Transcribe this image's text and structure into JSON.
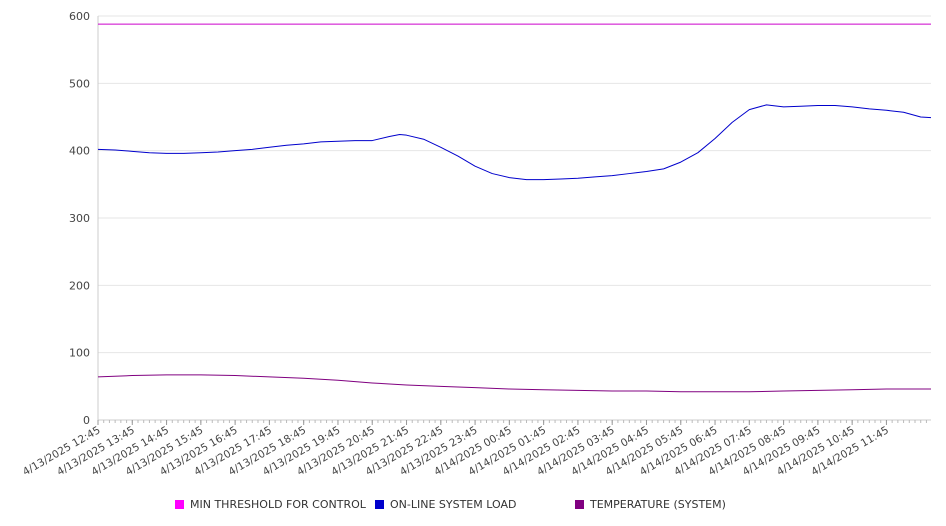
{
  "chart_data": {
    "type": "line",
    "title": "",
    "xlabel": "",
    "ylabel": "",
    "ylim": [
      0,
      600
    ],
    "yticks": [
      0,
      100,
      200,
      300,
      400,
      500,
      600
    ],
    "grid": true,
    "legend_position": "bottom",
    "categories": [
      "4/13/2025 12:45",
      "4/13/2025 13:45",
      "4/13/2025 14:45",
      "4/13/2025 15:45",
      "4/13/2025 16:45",
      "4/13/2025 17:45",
      "4/13/2025 18:45",
      "4/13/2025 19:45",
      "4/13/2025 20:45",
      "4/13/2025 21:45",
      "4/13/2025 22:45",
      "4/13/2025 23:45",
      "4/14/2025 00:45",
      "4/14/2025 01:45",
      "4/14/2025 02:45",
      "4/14/2025 03:45",
      "4/14/2025 04:45",
      "4/14/2025 05:45",
      "4/14/2025 06:45",
      "4/14/2025 07:45",
      "4/14/2025 08:45",
      "4/14/2025 09:45",
      "4/14/2025 10:45",
      "4/14/2025 11:45"
    ],
    "x_max": 24.3,
    "series": [
      {
        "name": "MIN THRESHOLD FOR CONTROL",
        "color": "#cc00cc",
        "points": [
          [
            0,
            588
          ],
          [
            24.3,
            588
          ]
        ]
      },
      {
        "name": "ON-LINE SYSTEM LOAD",
        "color": "#0000cc",
        "points": [
          [
            0,
            402
          ],
          [
            0.5,
            401
          ],
          [
            1,
            399
          ],
          [
            1.5,
            397
          ],
          [
            2,
            396
          ],
          [
            2.5,
            396
          ],
          [
            3,
            397
          ],
          [
            3.5,
            398
          ],
          [
            4,
            400
          ],
          [
            4.5,
            402
          ],
          [
            5,
            405
          ],
          [
            5.5,
            408
          ],
          [
            6,
            410
          ],
          [
            6.5,
            413
          ],
          [
            7,
            414
          ],
          [
            7.5,
            415
          ],
          [
            8,
            415
          ],
          [
            8.5,
            421
          ],
          [
            8.8,
            424
          ],
          [
            9,
            423
          ],
          [
            9.5,
            417
          ],
          [
            10,
            405
          ],
          [
            10.5,
            392
          ],
          [
            11,
            377
          ],
          [
            11.5,
            366
          ],
          [
            12,
            360
          ],
          [
            12.5,
            357
          ],
          [
            13,
            357
          ],
          [
            13.5,
            358
          ],
          [
            14,
            359
          ],
          [
            14.5,
            361
          ],
          [
            15,
            363
          ],
          [
            15.5,
            366
          ],
          [
            16,
            369
          ],
          [
            16.5,
            373
          ],
          [
            17,
            383
          ],
          [
            17.5,
            397
          ],
          [
            18,
            418
          ],
          [
            18.5,
            442
          ],
          [
            19,
            461
          ],
          [
            19.5,
            468
          ],
          [
            20,
            465
          ],
          [
            20.5,
            466
          ],
          [
            21,
            467
          ],
          [
            21.5,
            467
          ],
          [
            22,
            465
          ],
          [
            22.5,
            462
          ],
          [
            23,
            460
          ],
          [
            23.5,
            457
          ],
          [
            24,
            450
          ],
          [
            24.3,
            449
          ]
        ]
      },
      {
        "name": "TEMPERATURE (SYSTEM)",
        "color": "#800080",
        "points": [
          [
            0,
            64
          ],
          [
            1,
            66
          ],
          [
            2,
            67
          ],
          [
            3,
            67
          ],
          [
            4,
            66
          ],
          [
            5,
            64
          ],
          [
            6,
            62
          ],
          [
            7,
            59
          ],
          [
            8,
            55
          ],
          [
            9,
            52
          ],
          [
            10,
            50
          ],
          [
            11,
            48
          ],
          [
            12,
            46
          ],
          [
            13,
            45
          ],
          [
            14,
            44
          ],
          [
            15,
            43
          ],
          [
            16,
            43
          ],
          [
            17,
            42
          ],
          [
            18,
            42
          ],
          [
            19,
            42
          ],
          [
            20,
            43
          ],
          [
            21,
            44
          ],
          [
            22,
            45
          ],
          [
            23,
            46
          ],
          [
            24,
            46
          ],
          [
            24.3,
            46
          ]
        ]
      }
    ]
  }
}
